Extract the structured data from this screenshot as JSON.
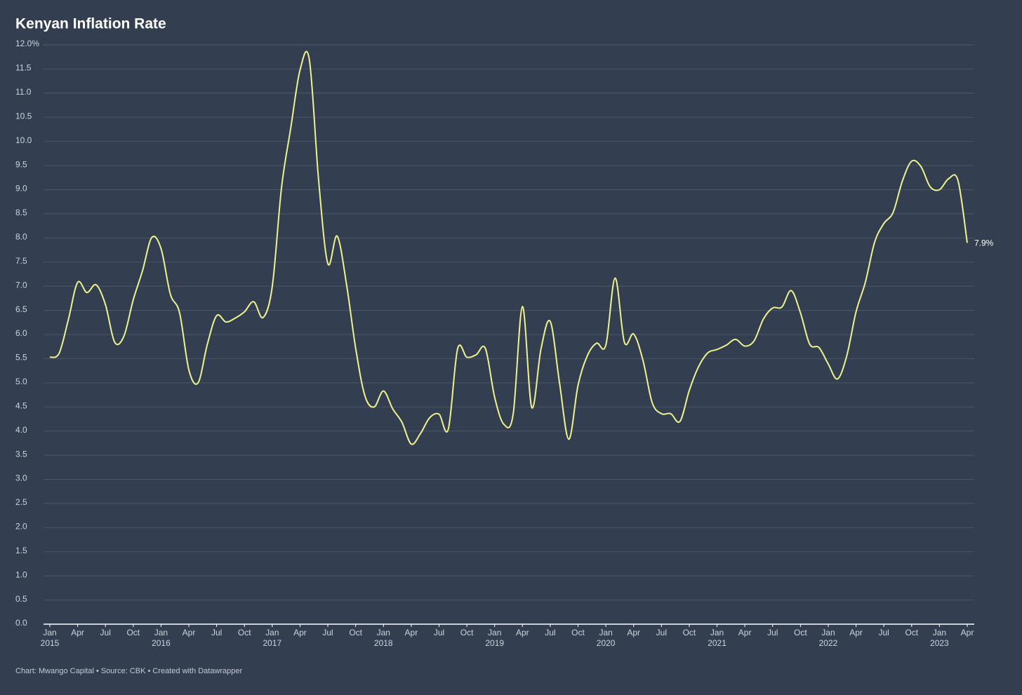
{
  "chart_data": {
    "type": "line",
    "title": "Kenyan Inflation Rate",
    "credit": "Chart: Mwango Capital • Source: CBK • Created with Datawrapper",
    "x": [
      "2015-01",
      "2015-02",
      "2015-03",
      "2015-04",
      "2015-05",
      "2015-06",
      "2015-07",
      "2015-08",
      "2015-09",
      "2015-10",
      "2015-11",
      "2015-12",
      "2016-01",
      "2016-02",
      "2016-03",
      "2016-04",
      "2016-05",
      "2016-06",
      "2016-07",
      "2016-08",
      "2016-09",
      "2016-10",
      "2016-11",
      "2016-12",
      "2017-01",
      "2017-02",
      "2017-03",
      "2017-04",
      "2017-05",
      "2017-06",
      "2017-07",
      "2017-08",
      "2017-09",
      "2017-10",
      "2017-11",
      "2017-12",
      "2018-01",
      "2018-02",
      "2018-03",
      "2018-04",
      "2018-05",
      "2018-06",
      "2018-07",
      "2018-08",
      "2018-09",
      "2018-10",
      "2018-11",
      "2018-12",
      "2019-01",
      "2019-02",
      "2019-03",
      "2019-04",
      "2019-05",
      "2019-06",
      "2019-07",
      "2019-08",
      "2019-09",
      "2019-10",
      "2019-11",
      "2019-12",
      "2020-01",
      "2020-02",
      "2020-03",
      "2020-04",
      "2020-05",
      "2020-06",
      "2020-07",
      "2020-08",
      "2020-09",
      "2020-10",
      "2020-11",
      "2020-12",
      "2021-01",
      "2021-02",
      "2021-03",
      "2021-04",
      "2021-05",
      "2021-06",
      "2021-07",
      "2021-08",
      "2021-09",
      "2021-10",
      "2021-11",
      "2021-12",
      "2022-01",
      "2022-02",
      "2022-03",
      "2022-04",
      "2022-05",
      "2022-06",
      "2022-07",
      "2022-08",
      "2022-09",
      "2022-10",
      "2022-11",
      "2022-12",
      "2023-01",
      "2023-02",
      "2023-03",
      "2023-04"
    ],
    "series": [
      {
        "name": "Inflation",
        "color": "#eef28e",
        "values": [
          5.53,
          5.61,
          6.31,
          7.08,
          6.87,
          7.03,
          6.62,
          5.84,
          5.97,
          6.72,
          7.32,
          8.01,
          7.78,
          6.84,
          6.45,
          5.27,
          5.0,
          5.8,
          6.39,
          6.26,
          6.34,
          6.47,
          6.68,
          6.35,
          6.99,
          9.04,
          10.28,
          11.48,
          11.7,
          9.21,
          7.47,
          8.04,
          7.06,
          5.72,
          4.73,
          4.5,
          4.83,
          4.46,
          4.18,
          3.73,
          3.95,
          4.28,
          4.35,
          4.04,
          5.7,
          5.53,
          5.58,
          5.71,
          4.7,
          4.14,
          4.35,
          6.58,
          4.49,
          5.7,
          6.27,
          5.0,
          3.83,
          4.95,
          5.56,
          5.82,
          5.78,
          7.17,
          5.84,
          6.01,
          5.47,
          4.59,
          4.36,
          4.36,
          4.2,
          4.84,
          5.33,
          5.62,
          5.69,
          5.78,
          5.9,
          5.76,
          5.87,
          6.32,
          6.55,
          6.57,
          6.91,
          6.45,
          5.8,
          5.73,
          5.39,
          5.08,
          5.56,
          6.47,
          7.08,
          7.91,
          8.3,
          8.53,
          9.18,
          9.59,
          9.48,
          9.06,
          9.0,
          9.23,
          9.19,
          7.9
        ],
        "value_labels": [
          null,
          null,
          null,
          null,
          null,
          null,
          null,
          null,
          null,
          null,
          null,
          null,
          null,
          null,
          null,
          null,
          null,
          null,
          null,
          null,
          null,
          null,
          null,
          null,
          null,
          null,
          null,
          null,
          null,
          null,
          null,
          null,
          null,
          null,
          null,
          null,
          null,
          null,
          null,
          null,
          null,
          null,
          null,
          null,
          null,
          null,
          null,
          null,
          null,
          null,
          null,
          null,
          null,
          null,
          null,
          null,
          null,
          null,
          null,
          null,
          null,
          null,
          null,
          null,
          null,
          null,
          null,
          null,
          null,
          null,
          null,
          null,
          null,
          null,
          null,
          null,
          null,
          null,
          null,
          null,
          null,
          null,
          null,
          null,
          null,
          null,
          null,
          null,
          null,
          null,
          null,
          null,
          null,
          null,
          null,
          null,
          null,
          null,
          null,
          "7.9%"
        ]
      }
    ],
    "ylim": [
      0,
      12
    ],
    "yticks": [
      {
        "value": 0,
        "label": "0.0"
      },
      0.5,
      {
        "value": 1,
        "label": "1.0"
      },
      1.5,
      {
        "value": 2,
        "label": "2.0"
      },
      2.5,
      {
        "value": 3,
        "label": "3.0"
      },
      3.5,
      {
        "value": 4,
        "label": "4.0"
      },
      4.5,
      {
        "value": 5,
        "label": "5.0"
      },
      5.5,
      {
        "value": 6,
        "label": "6.0"
      },
      6.5,
      {
        "value": 7,
        "label": "7.0"
      },
      7.5,
      {
        "value": 8,
        "label": "8.0"
      },
      8.5,
      {
        "value": 9,
        "label": "9.0"
      },
      9.5,
      {
        "value": 10,
        "label": "10.0"
      },
      10.5,
      {
        "value": 11,
        "label": "11.0"
      },
      11.5,
      {
        "value": 12,
        "label": "12.0%"
      }
    ],
    "xticks": [
      {
        "value": "2015-01",
        "label": "Jan",
        "year": "2015"
      },
      {
        "value": "2015-04",
        "label": "Apr"
      },
      {
        "value": "2015-07",
        "label": "Jul"
      },
      {
        "value": "2015-10",
        "label": "Oct"
      },
      {
        "value": "2016-01",
        "label": "Jan",
        "year": "2016"
      },
      {
        "value": "2016-04",
        "label": "Apr"
      },
      {
        "value": "2016-07",
        "label": "Jul"
      },
      {
        "value": "2016-10",
        "label": "Oct"
      },
      {
        "value": "2017-01",
        "label": "Jan",
        "year": "2017"
      },
      {
        "value": "2017-04",
        "label": "Apr"
      },
      {
        "value": "2017-07",
        "label": "Jul"
      },
      {
        "value": "2017-10",
        "label": "Oct"
      },
      {
        "value": "2018-01",
        "label": "Jan",
        "year": "2018"
      },
      {
        "value": "2018-04",
        "label": "Apr"
      },
      {
        "value": "2018-07",
        "label": "Jul"
      },
      {
        "value": "2018-10",
        "label": "Oct"
      },
      {
        "value": "2019-01",
        "label": "Jan",
        "year": "2019"
      },
      {
        "value": "2019-04",
        "label": "Apr"
      },
      {
        "value": "2019-07",
        "label": "Jul"
      },
      {
        "value": "2019-10",
        "label": "Oct"
      },
      {
        "value": "2020-01",
        "label": "Jan",
        "year": "2020"
      },
      {
        "value": "2020-04",
        "label": "Apr"
      },
      {
        "value": "2020-07",
        "label": "Jul"
      },
      {
        "value": "2020-10",
        "label": "Oct"
      },
      {
        "value": "2021-01",
        "label": "Jan",
        "year": "2021"
      },
      {
        "value": "2021-04",
        "label": "Apr"
      },
      {
        "value": "2021-07",
        "label": "Jul"
      },
      {
        "value": "2021-10",
        "label": "Oct"
      },
      {
        "value": "2022-01",
        "label": "Jan",
        "year": "2022"
      },
      {
        "value": "2022-04",
        "label": "Apr"
      },
      {
        "value": "2022-07",
        "label": "Jul"
      },
      {
        "value": "2022-10",
        "label": "Oct"
      },
      {
        "value": "2023-01",
        "label": "Jan",
        "year": "2023"
      },
      {
        "value": "2023-04",
        "label": "Apr"
      }
    ],
    "grid": true
  }
}
